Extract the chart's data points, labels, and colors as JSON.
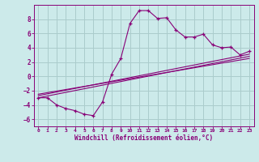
{
  "xlabel": "Windchill (Refroidissement éolien,°C)",
  "background_color": "#cceaea",
  "grid_color": "#aacccc",
  "line_color": "#880077",
  "xlim": [
    -0.5,
    23.5
  ],
  "ylim": [
    -7,
    10
  ],
  "xticks": [
    0,
    1,
    2,
    3,
    4,
    5,
    6,
    7,
    8,
    9,
    10,
    11,
    12,
    13,
    14,
    15,
    16,
    17,
    18,
    19,
    20,
    21,
    22,
    23
  ],
  "yticks": [
    -6,
    -4,
    -2,
    0,
    2,
    4,
    6,
    8
  ],
  "series1_x": [
    0,
    1,
    2,
    3,
    4,
    5,
    6,
    7,
    8,
    9,
    10,
    11,
    12,
    13,
    14,
    15,
    16,
    17,
    18,
    19,
    20,
    21,
    22,
    23
  ],
  "series1_y": [
    -3.0,
    -3.0,
    -4.0,
    -4.5,
    -4.8,
    -5.3,
    -5.5,
    -3.6,
    0.3,
    2.5,
    7.4,
    9.2,
    9.2,
    8.1,
    8.2,
    6.5,
    5.5,
    5.5,
    5.9,
    4.4,
    4.0,
    4.1,
    3.0,
    3.5
  ],
  "series2_x": [
    0,
    23
  ],
  "series2_y": [
    -3.0,
    2.8
  ],
  "series3_x": [
    0,
    23
  ],
  "series3_y": [
    -2.7,
    3.1
  ],
  "series4_x": [
    0,
    23
  ],
  "series4_y": [
    -2.5,
    2.5
  ]
}
